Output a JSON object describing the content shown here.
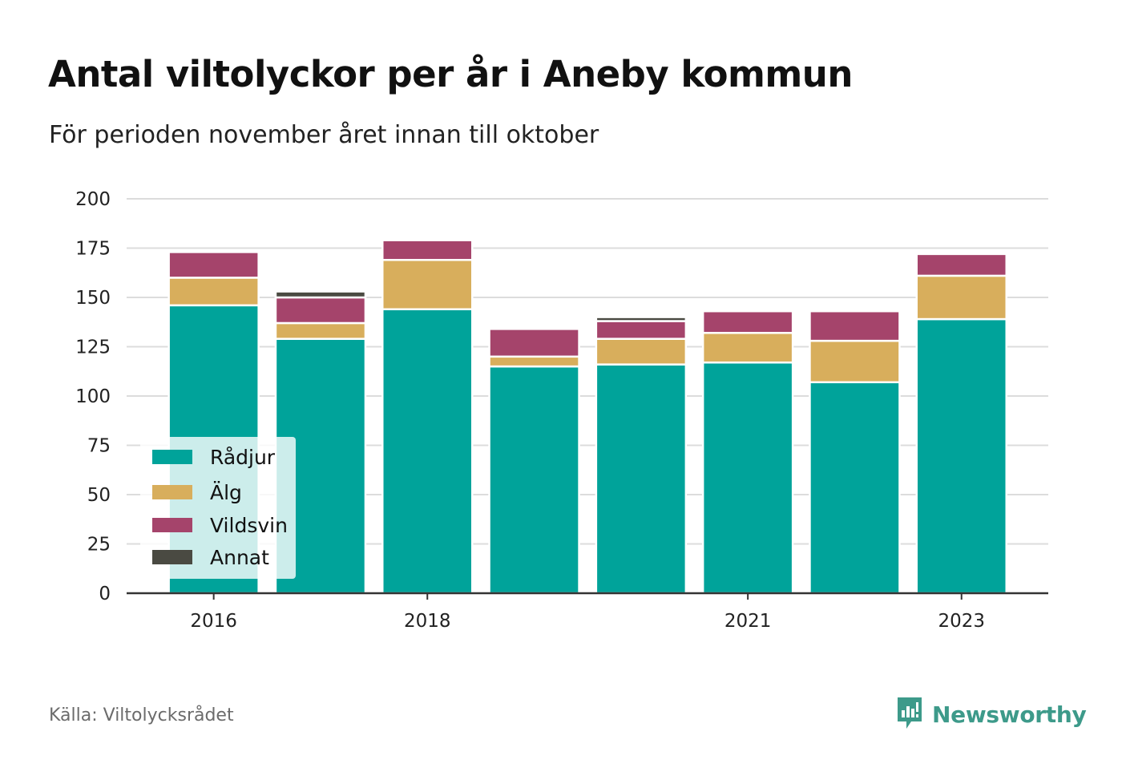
{
  "header": {
    "title": "Antal viltolyckor per år i Aneby kommun",
    "subtitle": "För perioden november året innan till oktober"
  },
  "footer": {
    "source": "Källa: Viltolycksrådet",
    "brand": "Newsworthy",
    "brand_icon": "newsworthy-logo-icon"
  },
  "colors": {
    "Rådjur": "#00a39a",
    "Älg": "#d8ae5c",
    "Vildsvin": "#a5446b",
    "Annat": "#4a4a42"
  },
  "chart_data": {
    "type": "bar",
    "stacked": true,
    "categories": [
      "2016",
      "2017",
      "2018",
      "2019",
      "2020",
      "2021",
      "2022",
      "2023"
    ],
    "x_tick_labels": [
      "2016",
      "",
      "2018",
      "",
      "",
      "2021",
      "",
      "2023"
    ],
    "series": [
      {
        "name": "Rådjur",
        "values": [
          146,
          129,
          144,
          115,
          116,
          117,
          107,
          139
        ]
      },
      {
        "name": "Älg",
        "values": [
          14,
          8,
          25,
          5,
          13,
          15,
          21,
          22
        ]
      },
      {
        "name": "Vildsvin",
        "values": [
          13,
          13,
          10,
          14,
          9,
          11,
          15,
          11
        ]
      },
      {
        "name": "Annat",
        "values": [
          0,
          3,
          0,
          0,
          2,
          0,
          0,
          0
        ]
      }
    ],
    "ylim": [
      0,
      200
    ],
    "y_ticks": [
      0,
      25,
      50,
      75,
      100,
      125,
      150,
      175,
      200
    ],
    "grid": true,
    "legend_position": "bottom-left"
  }
}
